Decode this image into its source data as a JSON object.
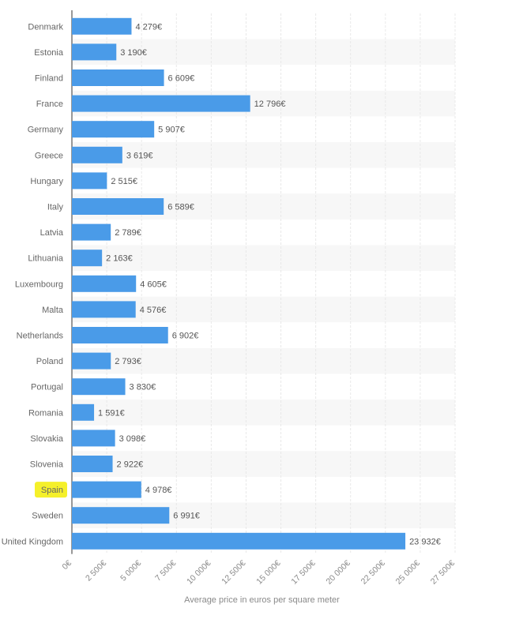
{
  "chart_data": {
    "type": "bar",
    "orientation": "horizontal",
    "title": "",
    "xlabel": "Average price in euros per square meter",
    "ylabel": "",
    "xlim": [
      0,
      27500
    ],
    "x_ticks": [
      0,
      2500,
      5000,
      7500,
      10000,
      12500,
      15000,
      17500,
      20000,
      22500,
      25000,
      27500
    ],
    "x_tick_labels": [
      "0€",
      "2 500€",
      "5 000€",
      "7 500€",
      "10 000€",
      "12 500€",
      "15 000€",
      "17 500€",
      "20 000€",
      "22 500€",
      "25 000€",
      "27 500€"
    ],
    "categories": [
      "Denmark",
      "Estonia",
      "Finland",
      "France",
      "Germany",
      "Greece",
      "Hungary",
      "Italy",
      "Latvia",
      "Lithuania",
      "Luxembourg",
      "Malta",
      "Netherlands",
      "Poland",
      "Portugal",
      "Romania",
      "Slovakia",
      "Slovenia",
      "Spain",
      "Sweden",
      "United Kingdom"
    ],
    "values": [
      4279,
      3190,
      6609,
      12796,
      5907,
      3619,
      2515,
      6589,
      2789,
      2163,
      4605,
      4576,
      6902,
      2793,
      3830,
      1591,
      3098,
      2922,
      4978,
      6991,
      23932
    ],
    "value_labels": [
      "4 279€",
      "3 190€",
      "6 609€",
      "12 796€",
      "5 907€",
      "3 619€",
      "2 515€",
      "6 589€",
      "2 789€",
      "2 163€",
      "4 605€",
      "4 576€",
      "6 902€",
      "2 793€",
      "3 830€",
      "1 591€",
      "3 098€",
      "2 922€",
      "4 978€",
      "6 991€",
      "23 932€"
    ],
    "highlighted_category": "Spain",
    "grid": true,
    "colors": {
      "bar": "#4a9be8",
      "highlight": "#f5f02a",
      "grid": "#e8e8e8",
      "stripe": "#f7f7f7"
    }
  }
}
